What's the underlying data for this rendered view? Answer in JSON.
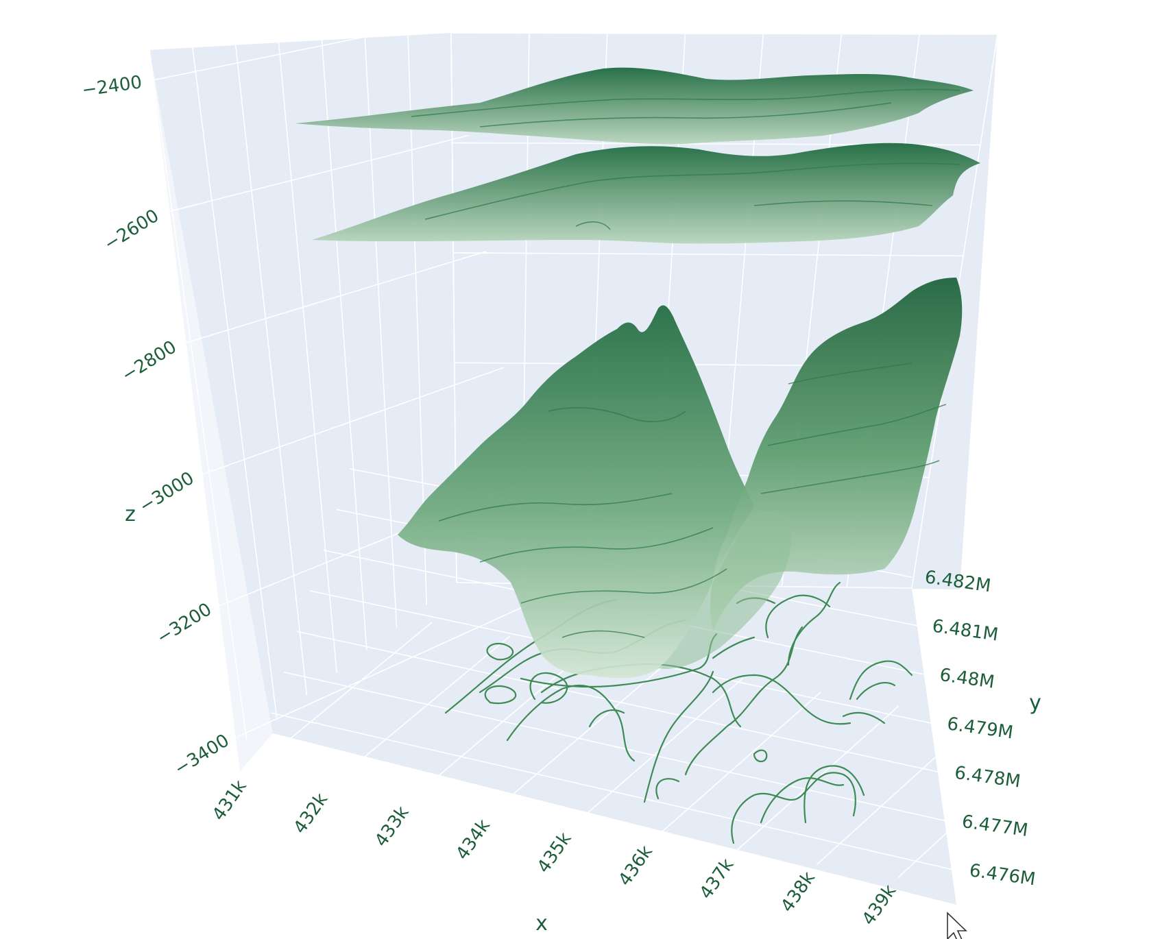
{
  "chart_data": {
    "type": "surface",
    "axes": {
      "x": {
        "title": "x",
        "ticks": [
          "431k",
          "432k",
          "433k",
          "434k",
          "435k",
          "436k",
          "437k",
          "438k",
          "439k"
        ]
      },
      "y": {
        "title": "y",
        "ticks": [
          "6.476M",
          "6.477M",
          "6.478M",
          "6.479M",
          "6.48M",
          "6.481M",
          "6.482M"
        ]
      },
      "z": {
        "title": "z",
        "ticks": [
          "−3400",
          "−3200",
          "−3000",
          "−2800",
          "−2600",
          "−2400"
        ]
      }
    },
    "surfaces": [
      {
        "z_approx": -2460,
        "colorscale": "Greens"
      },
      {
        "z_approx": -2560,
        "colorscale": "Greens"
      },
      {
        "z_range": [
          -3350,
          -2700
        ],
        "colorscale": "Greens"
      }
    ],
    "contours_projected_on_floor": true,
    "colors": {
      "plot_background": "#e5ecf6",
      "grid": "#ffffff",
      "tick_text": "#1d5e3a",
      "surface_dark": "#1e6a3e",
      "surface_light": "#c9dfcc"
    }
  },
  "ui": {
    "cursor": "arrow-pointer-icon"
  }
}
